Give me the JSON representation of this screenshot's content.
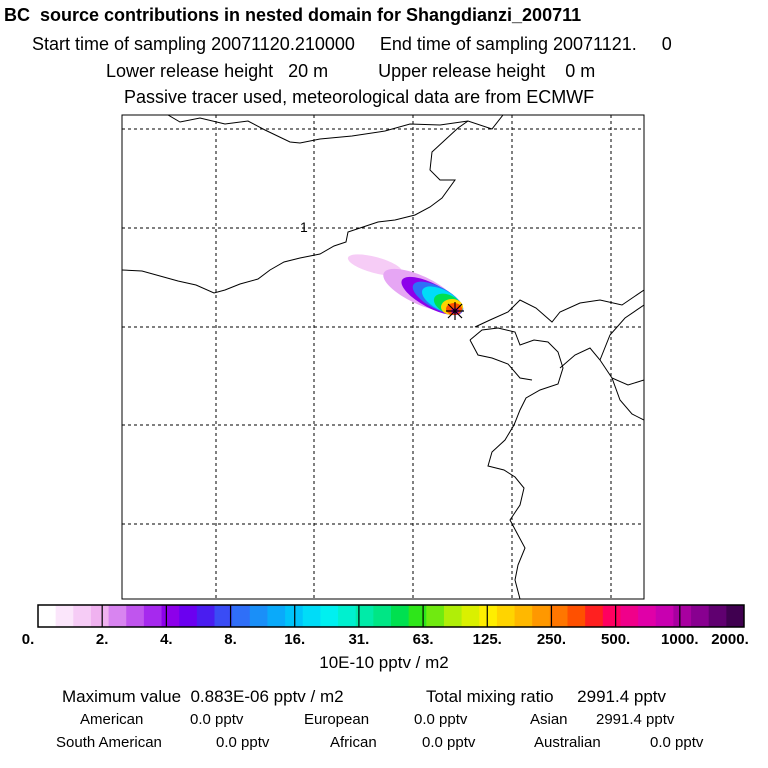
{
  "header": {
    "title": "BC  source contributions in nested domain for Shangdianzi_200711",
    "sampling_line": "Start time of sampling 20071120.210000     End time of sampling 20071121.     0",
    "release_line": "Lower release height   20 m          Upper release height    0 m",
    "tracer_line": "Passive tracer used, meteorological data are from ECMWF"
  },
  "map": {
    "contour_label": "1",
    "receptor_marker": "receptor-star"
  },
  "colorbar": {
    "ticks": [
      "0.",
      "2.",
      "4.",
      "8.",
      "16.",
      "31.",
      "63.",
      "125.",
      "250.",
      "500.",
      "1000.",
      "2000."
    ],
    "colors": [
      "#ffffff",
      "#fbe6fb",
      "#f6ccf6",
      "#f0b2f0",
      "#d884f0",
      "#c055ee",
      "#a629ee",
      "#8d00ea",
      "#6b00f0",
      "#4a1df0",
      "#3a4cf5",
      "#2f6ff8",
      "#1a8ff8",
      "#0aaafa",
      "#00c4fa",
      "#00dcf8",
      "#00f0f0",
      "#00f0cf",
      "#00eba8",
      "#00e685",
      "#00e050",
      "#2ee61a",
      "#70ea10",
      "#b0ee08",
      "#daf000",
      "#ffee00",
      "#ffd400",
      "#ffb800",
      "#ff9800",
      "#ff7600",
      "#ff5000",
      "#ff2020",
      "#ff0060",
      "#f0008a",
      "#e000a8",
      "#c800b0",
      "#a800a0",
      "#880090",
      "#600070",
      "#400050"
    ],
    "units": "10E-10 pptv / m2"
  },
  "summary": {
    "max_value": "Maximum value  0.883E-06 pptv / m2",
    "total": "Total mixing ratio     2991.4 pptv",
    "sources": [
      {
        "label": "American",
        "value": "0.0 pptv"
      },
      {
        "label": "European",
        "value": "0.0 pptv"
      },
      {
        "label": "Asian",
        "value": "2991.4 pptv"
      },
      {
        "label": "South American",
        "value": "0.0 pptv"
      },
      {
        "label": "African",
        "value": "0.0 pptv"
      },
      {
        "label": "Australian",
        "value": "0.0 pptv"
      }
    ]
  }
}
